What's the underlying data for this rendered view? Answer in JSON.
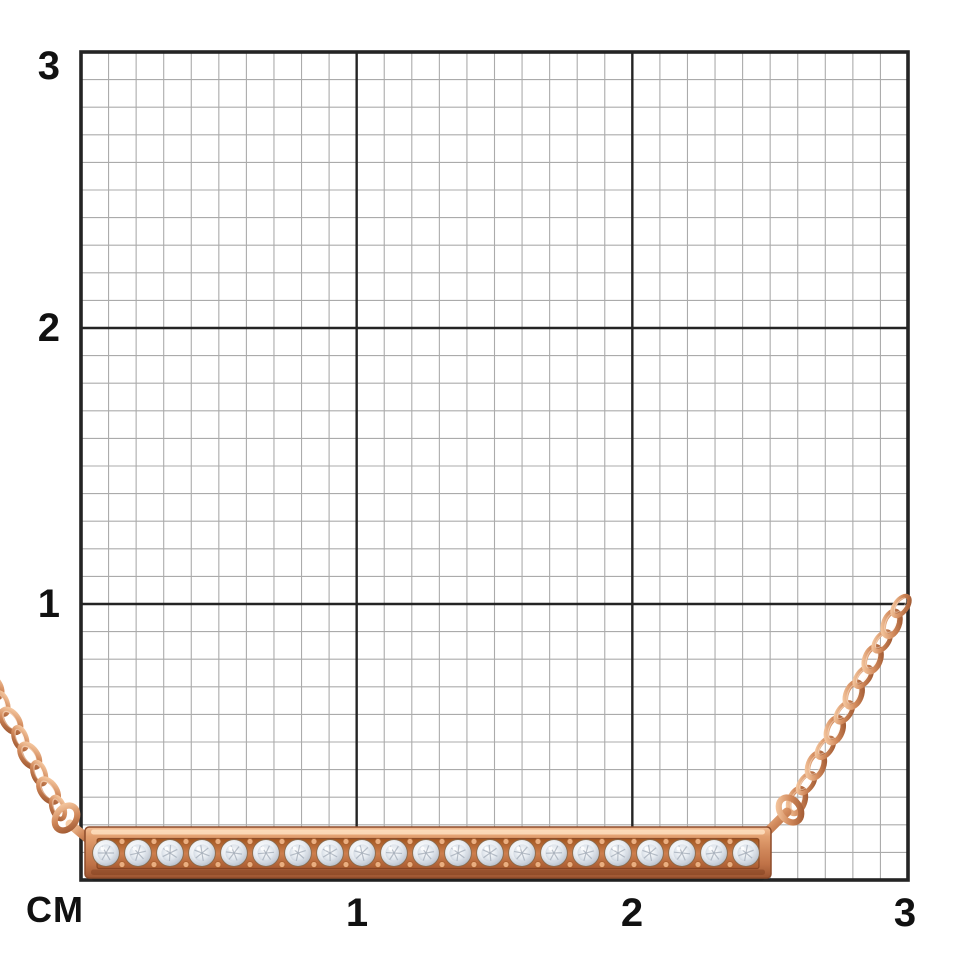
{
  "ruler": {
    "unit_label": "CM",
    "y_axis_labels": [
      "3",
      "2",
      "1"
    ],
    "x_axis_labels": [
      "1",
      "2",
      "3"
    ],
    "minor_cells_per_major": 10,
    "major_span_cm": 1
  },
  "necklace": {
    "name": "rose-gold-diamond-bar-pendant-necklace",
    "diamond_count": 21,
    "bar_length_cm": 2.5,
    "chain_style": "cable-link"
  },
  "palette": {
    "background": "#ffffff",
    "grid_minor": "#ababab",
    "grid_major": "#242424",
    "label": "#111111",
    "rose_gold_light": "#f8cda6",
    "rose_gold": "#d28a5c",
    "rose_gold_dark": "#9e5730",
    "bar_channel": "#b96a3c",
    "diamond_light": "#ffffff",
    "diamond_dark": "#98a1ae",
    "prong": "#eaae80"
  }
}
